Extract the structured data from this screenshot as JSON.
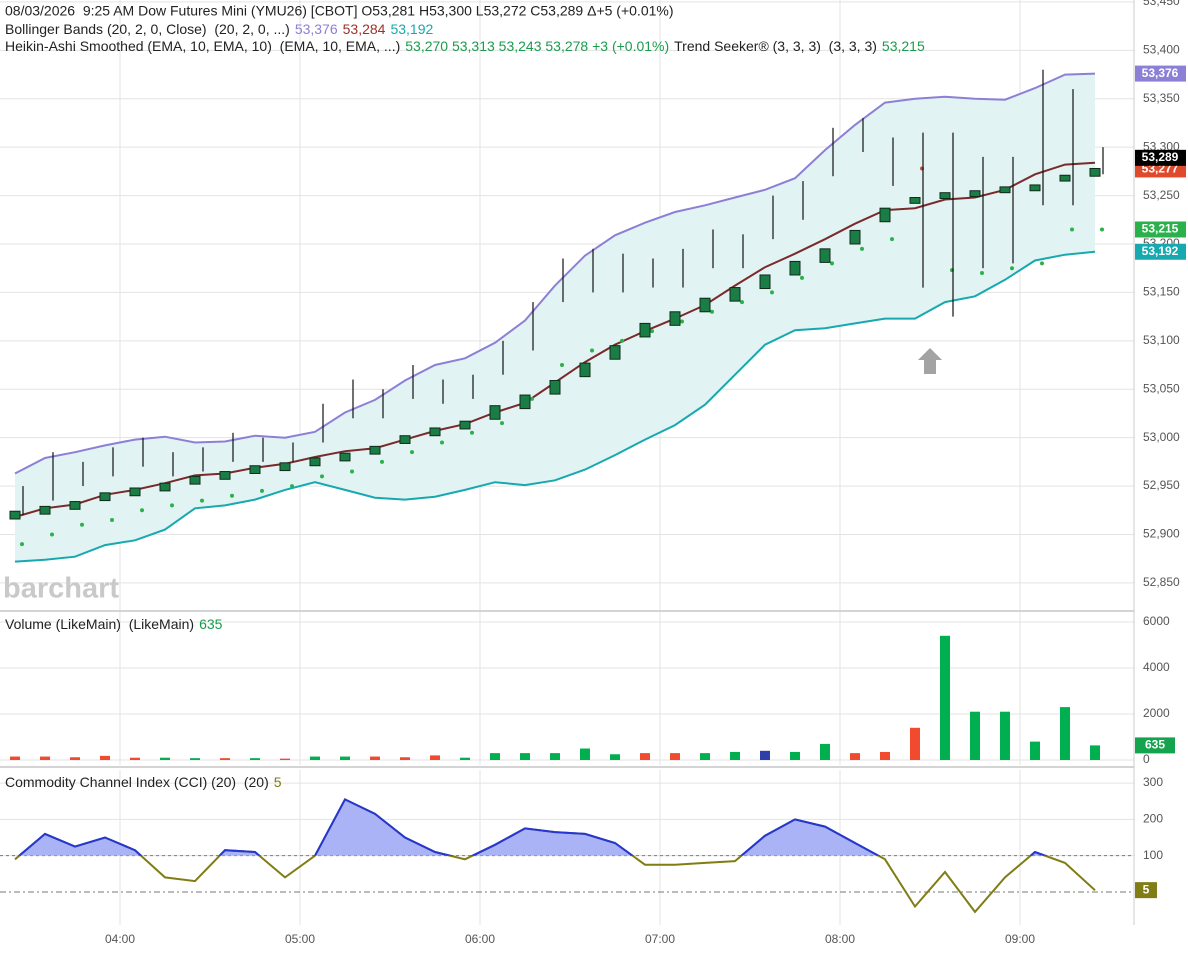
{
  "chart_data": [
    {
      "type": "candlestick",
      "legend": {
        "quote": "08/03/2026  9:25 AM Dow Futures Mini (YMU26) [CBOT] O53,281 H53,300 L53,272 C53,289 Δ+5 (+0.01%)",
        "bollinger": {
          "label": "Bollinger Bands (20, 2, 0, Close)  (20, 2, 0, ...)",
          "upper": "53,376",
          "middle": "53,284",
          "lower": "53,192"
        },
        "heikin_ashi": {
          "label": "Heikin-Ashi Smoothed (EMA, 10, EMA, 10)  (EMA, 10, EMA, ...)",
          "values": "53,270 53,313 53,243 53,278 +3 (+0.01%)"
        },
        "trend_seeker": {
          "label": "Trend Seeker® (3, 3, 3)  (3, 3, 3)",
          "value": "53,215"
        }
      },
      "watermark": "barchart",
      "x": [
        "03:25",
        "03:35",
        "03:45",
        "03:55",
        "04:05",
        "04:15",
        "04:25",
        "04:35",
        "04:45",
        "04:55",
        "05:05",
        "05:15",
        "05:25",
        "05:35",
        "05:45",
        "05:55",
        "06:05",
        "06:15",
        "06:25",
        "06:35",
        "06:45",
        "06:55",
        "07:05",
        "07:15",
        "07:25",
        "07:35",
        "07:45",
        "07:55",
        "08:05",
        "08:15",
        "08:25",
        "08:35",
        "08:45",
        "08:55",
        "09:05",
        "09:15",
        "09:25"
      ],
      "xlim": [
        "03:20",
        "09:38"
      ],
      "xticks": [
        "04:00",
        "05:00",
        "06:00",
        "07:00",
        "08:00",
        "09:00"
      ],
      "ylim": [
        52822,
        53452
      ],
      "yticks": [
        {
          "value": 53450,
          "label": "53,450"
        },
        {
          "value": 53400,
          "label": "53,400"
        },
        {
          "value": 53350,
          "label": "53,350"
        },
        {
          "value": 53300,
          "label": "53,300"
        },
        {
          "value": 53250,
          "label": "53,250"
        },
        {
          "value": 53200,
          "label": "53,200"
        },
        {
          "value": 53150,
          "label": "53,150"
        },
        {
          "value": 53100,
          "label": "53,100"
        },
        {
          "value": 53050,
          "label": "53,050"
        },
        {
          "value": 53000,
          "label": "53,000"
        },
        {
          "value": 52950,
          "label": "52,950"
        },
        {
          "value": 52900,
          "label": "52,900"
        },
        {
          "value": 52850,
          "label": "52,850"
        }
      ],
      "grid": true,
      "bollinger": {
        "upper": [
          52963,
          52979,
          52985,
          52992,
          52998,
          53001,
          52995,
          52996,
          53002,
          53000,
          53006,
          53026,
          53039,
          53059,
          53075,
          53082,
          53098,
          53121,
          53157,
          53188,
          53209,
          53222,
          53233,
          53240,
          53248,
          53256,
          53268,
          53297,
          53323,
          53346,
          53350,
          53352,
          53350,
          53349,
          53361,
          53375,
          53376
        ],
        "middle": [
          52918,
          52927,
          52931,
          52941,
          52946,
          52953,
          52961,
          52963,
          52969,
          52973,
          52980,
          52986,
          52989,
          52998,
          53007,
          53014,
          53026,
          53036,
          53057,
          53078,
          53096,
          53110,
          53123,
          53137,
          53157,
          53176,
          53190,
          53205,
          53221,
          53235,
          53237,
          53246,
          53248,
          53256,
          53272,
          53282,
          53284
        ],
        "lower": [
          52872,
          52874,
          52877,
          52889,
          52894,
          52905,
          52927,
          52930,
          52936,
          52946,
          52954,
          52946,
          52938,
          52936,
          52939,
          52946,
          52954,
          52951,
          52956,
          52967,
          52982,
          52998,
          53013,
          53034,
          53065,
          53096,
          53111,
          53113,
          53118,
          53123,
          53123,
          53140,
          53146,
          53163,
          53183,
          53189,
          53192
        ],
        "upper_color": "#8c7fd6",
        "middle_color": "#7a2a2a",
        "lower_color": "#17a8b0",
        "fill": "#e2f3f3"
      },
      "heikin_ashi": {
        "open": [
          52916,
          52921,
          52926,
          52935,
          52940,
          52945,
          52952,
          52957,
          52963,
          52966,
          52971,
          52976,
          52983,
          52994,
          53002,
          53009,
          53019,
          53030,
          53045,
          53063,
          53081,
          53104,
          53116,
          53130,
          53141,
          53154,
          53168,
          53181,
          53200,
          53223,
          53242,
          53247,
          53249,
          53253,
          53255,
          53265,
          53270
        ],
        "close": [
          52924,
          52929,
          52934,
          52943,
          52948,
          52953,
          52960,
          52965,
          52971,
          52974,
          52979,
          52984,
          52991,
          53002,
          53010,
          53017,
          53033,
          53044,
          53059,
          53077,
          53095,
          53118,
          53130,
          53144,
          53155,
          53168,
          53182,
          53195,
          53214,
          53237,
          53248,
          53253,
          53255,
          53259,
          53261,
          53271,
          53278
        ],
        "color": "#1b7d46"
      },
      "bars": {
        "high": [
          52950,
          52985,
          52975,
          52990,
          53000,
          52985,
          52990,
          53005,
          53000,
          52995,
          53035,
          53060,
          53050,
          53075,
          53060,
          53065,
          53100,
          53140,
          53185,
          53195,
          53190,
          53185,
          53195,
          53215,
          53210,
          53250,
          53265,
          53320,
          53330,
          53310,
          53315,
          53315,
          53290,
          53290,
          53380,
          53360,
          53300
        ],
        "low": [
          52920,
          52935,
          52950,
          52960,
          52970,
          52960,
          52965,
          52975,
          52975,
          52975,
          52995,
          53020,
          53020,
          53040,
          53035,
          53040,
          53065,
          53090,
          53140,
          53150,
          53150,
          53155,
          53155,
          53175,
          53175,
          53205,
          53225,
          53270,
          53295,
          53260,
          53155,
          53125,
          53175,
          53180,
          53240,
          53240,
          53272
        ],
        "color": "#111111"
      },
      "trend_seeker": {
        "values": [
          52890,
          52900,
          52910,
          52915,
          52925,
          52930,
          52935,
          52940,
          52945,
          52950,
          52960,
          52965,
          52975,
          52985,
          52995,
          53005,
          53015,
          53040,
          53075,
          53090,
          53100,
          53110,
          53120,
          53130,
          53140,
          53150,
          53165,
          53180,
          53195,
          53205,
          53278,
          53173,
          53170,
          53175,
          53180,
          53215,
          53215
        ],
        "colors": [
          "#2bb14c",
          "#2bb14c",
          "#2bb14c",
          "#2bb14c",
          "#2bb14c",
          "#2bb14c",
          "#2bb14c",
          "#2bb14c",
          "#2bb14c",
          "#2bb14c",
          "#2bb14c",
          "#2bb14c",
          "#2bb14c",
          "#2bb14c",
          "#2bb14c",
          "#2bb14c",
          "#2bb14c",
          "#2bb14c",
          "#2bb14c",
          "#2bb14c",
          "#2bb14c",
          "#2bb14c",
          "#2bb14c",
          "#2bb14c",
          "#2bb14c",
          "#2bb14c",
          "#2bb14c",
          "#2bb14c",
          "#2bb14c",
          "#2bb14c",
          "#d9443a",
          "#2bb14c",
          "#2bb14c",
          "#2bb14c",
          "#2bb14c",
          "#2bb14c",
          "#2bb14c"
        ]
      },
      "price_flags": [
        {
          "value": 53376,
          "label": "53,376",
          "color": "#8c7fd6"
        },
        {
          "value": 53277,
          "label": "53,277",
          "color": "#e04a2c"
        },
        {
          "value": 53289,
          "label": "53,289",
          "color": "#000000"
        },
        {
          "value": 53215,
          "label": "53,215",
          "color": "#2bb14c"
        },
        {
          "value": 53192,
          "label": "53,192",
          "color": "#17a8b0"
        }
      ]
    },
    {
      "type": "bar",
      "title": "Volume (LikeMain)  (LikeMain)",
      "x": [
        "03:25",
        "03:35",
        "03:45",
        "03:55",
        "04:05",
        "04:15",
        "04:25",
        "04:35",
        "04:45",
        "04:55",
        "05:05",
        "05:15",
        "05:25",
        "05:35",
        "05:45",
        "05:55",
        "06:05",
        "06:15",
        "06:25",
        "06:35",
        "06:45",
        "06:55",
        "07:05",
        "07:15",
        "07:25",
        "07:35",
        "07:45",
        "07:55",
        "08:05",
        "08:15",
        "08:25",
        "08:35",
        "08:45",
        "08:55",
        "09:05",
        "09:15",
        "09:25"
      ],
      "xlim": [
        "03:20",
        "09:38"
      ],
      "xticks": [
        "04:00",
        "05:00",
        "06:00",
        "07:00",
        "08:00",
        "09:00"
      ],
      "values": [
        150,
        150,
        120,
        180,
        100,
        100,
        80,
        80,
        80,
        60,
        150,
        150,
        150,
        120,
        200,
        100,
        300,
        300,
        300,
        500,
        250,
        300,
        300,
        300,
        350,
        400,
        350,
        700,
        300,
        350,
        1400,
        5400,
        2100,
        2100,
        800,
        2300,
        635
      ],
      "colors": [
        "#f24a2e",
        "#f24a2e",
        "#f24a2e",
        "#f24a2e",
        "#f24a2e",
        "#00b050",
        "#00b050",
        "#f24a2e",
        "#00b050",
        "#f24a2e",
        "#00b050",
        "#00b050",
        "#f24a2e",
        "#f24a2e",
        "#f24a2e",
        "#00b050",
        "#00b050",
        "#00b050",
        "#00b050",
        "#00b050",
        "#00b050",
        "#f24a2e",
        "#f24a2e",
        "#00b050",
        "#00b050",
        "#2d3fa8",
        "#00b050",
        "#00b050",
        "#f24a2e",
        "#f24a2e",
        "#f24a2e",
        "#00b050",
        "#00b050",
        "#00b050",
        "#00b050",
        "#00b050",
        "#00b050"
      ],
      "flag_color": "#14a44d",
      "ylim": [
        -217,
        6435
      ],
      "yticks": [
        0,
        2000,
        4000,
        6000
      ],
      "grid": true
    },
    {
      "type": "line",
      "title": "Commodity Channel Index (CCI) (20)  (20)",
      "x": [
        "03:25",
        "03:35",
        "03:45",
        "03:55",
        "04:05",
        "04:15",
        "04:25",
        "04:35",
        "04:45",
        "04:55",
        "05:05",
        "05:15",
        "05:25",
        "05:35",
        "05:45",
        "05:55",
        "06:05",
        "06:15",
        "06:25",
        "06:35",
        "06:45",
        "06:55",
        "07:05",
        "07:15",
        "07:25",
        "07:35",
        "07:45",
        "07:55",
        "08:05",
        "08:15",
        "08:25",
        "08:35",
        "08:45",
        "08:55",
        "09:05",
        "09:15",
        "09:25"
      ],
      "xlim": [
        "03:20",
        "09:38"
      ],
      "xticks": [
        {
          "value": "04:00",
          "label": "04:00"
        },
        {
          "value": "05:00",
          "label": "05:00"
        },
        {
          "value": "06:00",
          "label": "06:00"
        },
        {
          "value": "07:00",
          "label": "07:00"
        },
        {
          "value": "08:00",
          "label": "08:00"
        },
        {
          "value": "09:00",
          "label": "09:00"
        }
      ],
      "values": [
        90,
        160,
        125,
        150,
        115,
        40,
        30,
        115,
        110,
        40,
        100,
        255,
        215,
        150,
        110,
        90,
        130,
        175,
        165,
        160,
        135,
        75,
        75,
        80,
        85,
        155,
        200,
        180,
        135,
        90,
        -40,
        55,
        -55,
        40,
        110,
        80,
        5
      ],
      "ylim": [
        -91,
        336
      ],
      "yticks": [
        100,
        200,
        300
      ],
      "levels": [
        100,
        0
      ],
      "color_above": "#2436d6",
      "color_below": "#7f7d14",
      "fill_above": "#aab3f5",
      "grid": true
    }
  ]
}
